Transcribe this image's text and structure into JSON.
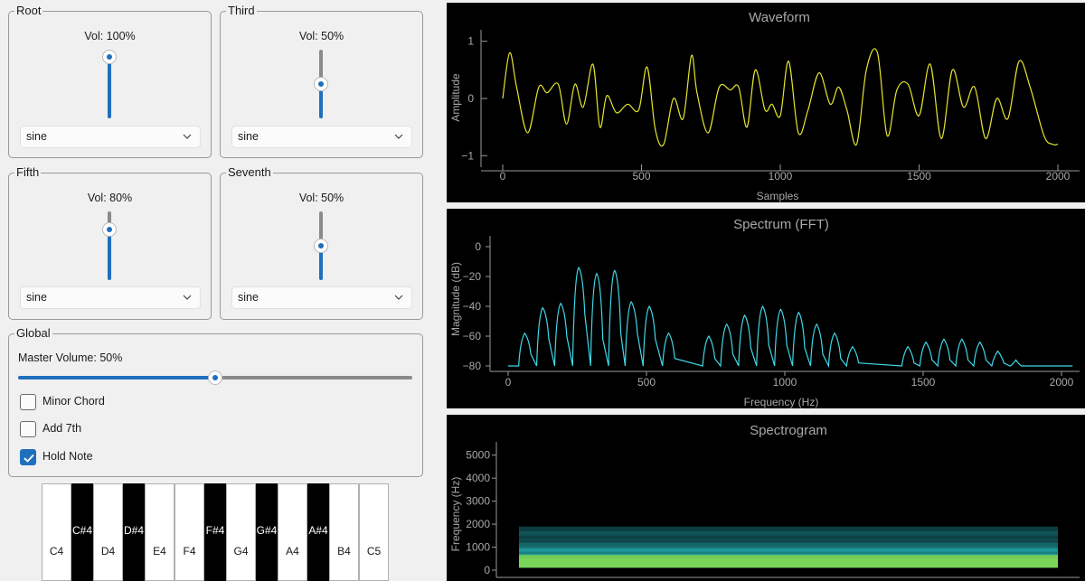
{
  "voices": [
    {
      "title": "Root",
      "vol_label": "Vol: 100%",
      "volume": 1.0,
      "wave": "sine"
    },
    {
      "title": "Third",
      "vol_label": "Vol: 50%",
      "volume": 0.5,
      "wave": "sine"
    },
    {
      "title": "Fifth",
      "vol_label": "Vol: 80%",
      "volume": 0.8,
      "wave": "sine"
    },
    {
      "title": "Seventh",
      "vol_label": "Vol: 50%",
      "volume": 0.5,
      "wave": "sine"
    }
  ],
  "global": {
    "title": "Global",
    "master_label": "Master Volume: 50%",
    "master_volume": 0.5,
    "minor_chord": {
      "label": "Minor Chord",
      "checked": false
    },
    "add_7th": {
      "label": "Add 7th",
      "checked": false
    },
    "hold_note": {
      "label": "Hold Note",
      "checked": true
    }
  },
  "piano": {
    "white_keys": [
      "C4",
      "D4",
      "E4",
      "F4",
      "G4",
      "A4",
      "B4",
      "C5"
    ],
    "black_keys": [
      "C#4",
      "D#4",
      "F#4",
      "G#4",
      "A#4"
    ]
  },
  "colors": {
    "accent": "#1f6fbf",
    "waveform": "#e6e62e",
    "spectrum": "#3fd8e8",
    "plot_bg": "#000000"
  },
  "icons": {
    "combo_arrow": "chevron-down-icon",
    "checkmark": "check-icon"
  },
  "chart_data": [
    {
      "type": "line",
      "title": "Waveform",
      "xlabel": "Samples",
      "ylabel": "Amplitude",
      "xlim": [
        0,
        2000
      ],
      "ylim": [
        -1.2,
        1.2
      ],
      "xticks": [
        0,
        500,
        1000,
        1500,
        2000
      ],
      "yticks": [
        1,
        0,
        -1
      ],
      "series": [
        {
          "x": [
            0,
            25,
            50,
            90,
            130,
            160,
            200,
            230,
            260,
            290,
            325,
            350,
            375,
            410,
            450,
            490,
            520,
            550,
            580,
            615,
            650,
            680,
            700,
            740,
            780,
            820,
            850,
            880,
            910,
            945,
            970,
            1000,
            1030,
            1065,
            1100,
            1140,
            1180,
            1210,
            1240,
            1275,
            1310,
            1350,
            1385,
            1420,
            1460,
            1500,
            1540,
            1580,
            1620,
            1660,
            1700,
            1740,
            1780,
            1820,
            1860,
            1900,
            1950,
            1980,
            2000
          ],
          "y": [
            0.0,
            0.8,
            0.2,
            -0.6,
            0.2,
            0.1,
            0.25,
            -0.45,
            0.25,
            -0.15,
            0.6,
            -0.5,
            0.05,
            -0.25,
            -0.1,
            -0.2,
            0.55,
            -0.55,
            -0.8,
            0.0,
            -0.35,
            0.75,
            0.1,
            -0.6,
            0.2,
            0.15,
            0.2,
            -0.5,
            0.5,
            -0.2,
            -0.1,
            -0.3,
            0.65,
            -0.6,
            -0.2,
            0.45,
            -0.1,
            0.2,
            -0.2,
            -0.8,
            0.5,
            0.8,
            -0.65,
            0.15,
            0.25,
            -0.3,
            0.6,
            -0.7,
            0.5,
            -0.15,
            0.2,
            -0.7,
            0.0,
            -0.35,
            0.65,
            0.2,
            -0.65,
            -0.8,
            -0.8
          ]
        }
      ]
    },
    {
      "type": "line",
      "title": "Spectrum (FFT)",
      "xlabel": "Frequency (Hz)",
      "ylabel": "Magnitude (dB)",
      "xlim": [
        -30,
        2030
      ],
      "ylim": [
        -85,
        5
      ],
      "xticks": [
        0,
        500,
        1000,
        1500,
        2000
      ],
      "yticks": [
        0,
        -20,
        -40,
        -60,
        -80
      ],
      "floor_db": -80,
      "series": [
        {
          "peaks": [
            [
              60,
              -58
            ],
            [
              125,
              -41
            ],
            [
              190,
              -38
            ],
            [
              255,
              -14
            ],
            [
              320,
              -18
            ],
            [
              385,
              -16
            ],
            [
              445,
              -37
            ],
            [
              510,
              -40
            ],
            [
              580,
              -58
            ],
            [
              725,
              -60
            ],
            [
              790,
              -52
            ],
            [
              855,
              -46
            ],
            [
              920,
              -40
            ],
            [
              985,
              -42
            ],
            [
              1050,
              -44
            ],
            [
              1115,
              -52
            ],
            [
              1180,
              -58
            ],
            [
              1245,
              -67
            ],
            [
              1445,
              -67
            ],
            [
              1510,
              -64
            ],
            [
              1575,
              -62
            ],
            [
              1640,
              -62
            ],
            [
              1705,
              -64
            ],
            [
              1770,
              -70
            ],
            [
              1835,
              -76
            ]
          ],
          "valley_db": [
            -72,
            -62,
            -60,
            -45,
            -62,
            -58,
            -58,
            -62,
            -75,
            -75,
            -72,
            -68,
            -66,
            -66,
            -68,
            -72,
            -75,
            -78,
            -78,
            -76,
            -76,
            -76,
            -76,
            -78,
            -80
          ]
        }
      ]
    },
    {
      "type": "heatmap",
      "title": "Spectrogram",
      "ylabel": "Frequency (Hz)",
      "ylim": [
        0,
        5500
      ],
      "yticks": [
        5000,
        4000,
        3000,
        2000,
        1000,
        0
      ],
      "bands": [
        {
          "freq": 300,
          "intensity": 1.0
        },
        {
          "freq": 500,
          "intensity": 0.9
        },
        {
          "freq": 850,
          "intensity": 0.6
        },
        {
          "freq": 1000,
          "intensity": 0.55
        },
        {
          "freq": 1150,
          "intensity": 0.45
        },
        {
          "freq": 1500,
          "intensity": 0.35
        },
        {
          "freq": 1700,
          "intensity": 0.3
        }
      ]
    }
  ]
}
